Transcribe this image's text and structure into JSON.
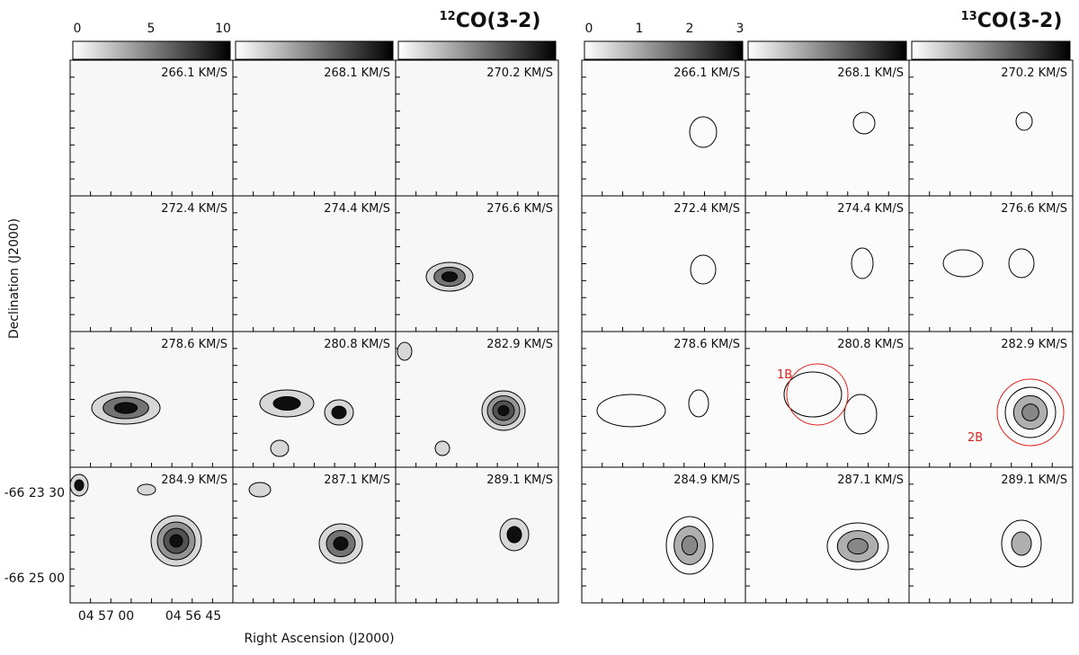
{
  "figure": {
    "left": {
      "title": {
        "sup": "12",
        "main": "CO(3-2)"
      },
      "colorbar_ticks": [
        "0",
        "5",
        "10"
      ],
      "panels": [
        "266.1 KM/S",
        "268.1 KM/S",
        "270.2 KM/S",
        "272.4 KM/S",
        "274.4 KM/S",
        "276.6 KM/S",
        "278.6 KM/S",
        "280.8 KM/S",
        "282.9 KM/S",
        "284.9 KM/S",
        "287.1 KM/S",
        "289.1 KM/S"
      ]
    },
    "right": {
      "title": {
        "sup": "13",
        "main": "CO(3-2)"
      },
      "colorbar_ticks": [
        "0",
        "1",
        "2",
        "3"
      ],
      "panels": [
        "266.1 KM/S",
        "268.1 KM/S",
        "270.2 KM/S",
        "272.4 KM/S",
        "274.4 KM/S",
        "276.6 KM/S",
        "278.6 KM/S",
        "280.8 KM/S",
        "282.9 KM/S",
        "284.9 KM/S",
        "287.1 KM/S",
        "289.1 KM/S"
      ],
      "annotations": [
        "1B",
        "2B"
      ]
    },
    "y_axis": {
      "title": "Declination (J2000)",
      "ticks": [
        "-66 23 30",
        "-66 25 00"
      ]
    },
    "x_axis": {
      "title": "Right Ascension (J2000)",
      "ticks": [
        "04 57 00",
        "04 56 45"
      ]
    }
  }
}
